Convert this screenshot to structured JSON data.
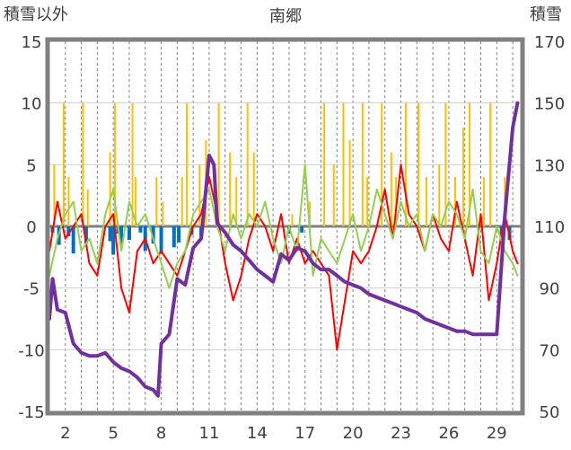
{
  "chart_data": {
    "type": "line",
    "title": "南郷",
    "y_left_label": "積雪以外",
    "y_right_label": "積雪",
    "y_left_range": [
      -15,
      15
    ],
    "y_left_ticks": [
      15,
      10,
      5,
      0,
      -5,
      -10,
      -15
    ],
    "y_right_range": [
      50,
      170
    ],
    "y_right_ticks": [
      170,
      150,
      130,
      110,
      90,
      70,
      50
    ],
    "x_range": [
      1,
      30.5
    ],
    "x_tick_labels": [
      "2",
      "5",
      "8",
      "11",
      "14",
      "17",
      "20",
      "23",
      "26",
      "29"
    ],
    "x_tick_values": [
      2,
      5,
      8,
      11,
      14,
      17,
      20,
      23,
      26,
      29
    ],
    "grid_days": [
      2,
      3,
      4,
      5,
      6,
      7,
      8,
      9,
      10,
      11,
      12,
      13,
      14,
      15,
      16,
      17,
      18,
      19,
      20,
      21,
      22,
      23,
      24,
      25,
      26,
      27,
      28,
      29,
      30
    ],
    "zero_line": 0,
    "series": [
      {
        "role": "temperature_max",
        "color": "#ff0000",
        "axis": "left",
        "x": [
          1.0,
          1.5,
          2.0,
          2.5,
          3.0,
          3.5,
          4.0,
          4.5,
          5.0,
          5.5,
          6.0,
          6.5,
          7.0,
          7.5,
          8.0,
          8.5,
          9.0,
          9.5,
          10.0,
          10.5,
          11.0,
          11.5,
          12.0,
          12.5,
          13.0,
          13.5,
          14.0,
          14.5,
          15.0,
          15.5,
          16.0,
          16.5,
          17.0,
          17.5,
          18.0,
          18.5,
          19.0,
          19.5,
          20.0,
          20.5,
          21.0,
          21.5,
          22.0,
          22.5,
          23.0,
          23.5,
          24.0,
          24.5,
          25.0,
          25.5,
          26.0,
          26.5,
          27.0,
          27.5,
          28.0,
          28.5,
          29.0,
          29.5,
          30.0,
          30.3
        ],
        "y": [
          -2,
          2,
          -1,
          0,
          1,
          -3,
          -4,
          0,
          1,
          -5,
          -7,
          -2,
          -1,
          -3,
          -2,
          -3,
          -4,
          -2,
          0,
          1,
          4,
          1,
          -3,
          -6,
          -4,
          -1,
          1,
          0,
          -2,
          1,
          -3,
          -1,
          -3,
          -2,
          -3,
          -4,
          -10,
          -6,
          -2,
          -3,
          -2,
          0,
          3,
          -1,
          5,
          1,
          0,
          -2,
          1,
          -1,
          -2,
          2,
          -1,
          -4,
          1,
          -6,
          -3,
          1,
          -2,
          -3
        ]
      },
      {
        "role": "precipitation",
        "color": "#ffc000",
        "axis": "left",
        "x": [
          1.3,
          1.9,
          2.2,
          3.1,
          3.4,
          4.8,
          5.1,
          6.2,
          6.4,
          7.7,
          8.1,
          9.3,
          9.6,
          10.4,
          10.8,
          11.6,
          12.3,
          12.7,
          13.4,
          13.8,
          16.2,
          17.3,
          18.2,
          18.8,
          19.4,
          19.8,
          20.6,
          20.9,
          21.8,
          22.4,
          22.7,
          23.3,
          24.1,
          24.6,
          25.4,
          25.8,
          26.4,
          26.9,
          27.3,
          28.2,
          28.6,
          29.5
        ],
        "y": [
          5,
          10,
          4,
          10,
          3,
          6,
          10,
          10,
          4,
          4,
          2,
          4,
          10,
          5,
          7,
          10,
          6,
          4,
          10,
          6,
          1,
          2,
          10,
          5,
          10,
          7,
          10,
          4,
          10,
          6,
          4,
          10,
          10,
          4,
          5,
          10,
          4,
          8,
          10,
          4,
          10,
          4
        ]
      },
      {
        "role": "temperature_min",
        "color": "#92d050",
        "axis": "left",
        "x": [
          1.0,
          1.5,
          2.0,
          2.5,
          3.0,
          3.5,
          4.0,
          4.5,
          5.0,
          5.5,
          6.0,
          6.5,
          7.0,
          7.5,
          8.0,
          8.5,
          9.0,
          9.5,
          10.0,
          10.5,
          11.0,
          11.5,
          12.0,
          12.5,
          13.0,
          13.5,
          14.0,
          14.5,
          15.0,
          15.5,
          16.0,
          16.5,
          17.0,
          17.5,
          18.0,
          18.5,
          19.0,
          19.5,
          20.0,
          20.5,
          21.0,
          21.5,
          22.0,
          22.5,
          23.0,
          23.5,
          24.0,
          24.5,
          25.0,
          25.5,
          26.0,
          26.5,
          27.0,
          27.5,
          28.0,
          28.5,
          29.0,
          29.5,
          30.0,
          30.3
        ],
        "y": [
          -4,
          -1,
          1,
          2,
          -2,
          -1,
          -3,
          1,
          3,
          -2,
          2,
          0,
          1,
          -1,
          -3,
          -5,
          -3,
          -2,
          1,
          2,
          3,
          0,
          -2,
          1,
          -1,
          1,
          0,
          2,
          -1,
          -3,
          0,
          -2,
          5,
          -4,
          -1,
          -2,
          -3,
          -1,
          1,
          -2,
          0,
          3,
          1,
          -1,
          2,
          0,
          1,
          -2,
          1,
          0,
          2,
          1,
          -1,
          3,
          -2,
          -3,
          0,
          -2,
          -3,
          -4
        ]
      },
      {
        "role": "sunshine",
        "color": "#0070c0",
        "axis": "left",
        "type": "bar",
        "x": [
          1.2,
          1.6,
          2.2,
          2.5,
          3.3,
          4.8,
          5.0,
          5.3,
          5.5,
          6.0,
          6.7,
          7.0,
          7.5,
          8.0,
          8.8,
          9.1,
          9.9,
          10.5,
          16.0,
          16.8,
          29.3,
          29.8
        ],
        "y": [
          -0.5,
          -1.5,
          -0.8,
          -2.2,
          -1.4,
          -1.2,
          -2.3,
          -0.6,
          -1.5,
          -1.1,
          -0.5,
          -2.0,
          -1.4,
          -2.2,
          -1.7,
          -1.3,
          -0.7,
          -0.8,
          -0.6,
          -0.5,
          -1.3,
          -1.1
        ]
      },
      {
        "role": "snow_depth",
        "color": "#7030a0",
        "axis": "right",
        "x": [
          1.0,
          1.2,
          1.5,
          2.0,
          2.5,
          3.0,
          3.5,
          4.0,
          4.5,
          5.0,
          5.5,
          6.0,
          6.5,
          7.0,
          7.5,
          7.8,
          8.0,
          8.5,
          9.0,
          9.5,
          10.0,
          10.5,
          11.0,
          11.3,
          11.5,
          12.0,
          12.5,
          13.0,
          13.5,
          14.0,
          14.5,
          15.0,
          15.5,
          16.0,
          16.5,
          17.0,
          17.5,
          18.0,
          18.5,
          19.0,
          19.5,
          20.0,
          20.5,
          21.0,
          21.5,
          22.0,
          22.5,
          23.0,
          23.5,
          24.0,
          24.5,
          25.0,
          25.5,
          26.0,
          26.5,
          27.0,
          27.5,
          28.0,
          28.5,
          29.0,
          29.5,
          30.0,
          30.3
        ],
        "y": [
          80,
          93,
          83,
          82,
          72,
          69,
          68,
          68,
          69,
          66,
          64,
          63,
          61,
          58,
          57,
          55,
          72,
          75,
          93,
          91,
          103,
          106,
          133,
          130,
          111,
          108,
          104,
          102,
          99,
          96,
          94,
          92,
          101,
          99,
          103,
          102,
          98,
          96,
          96,
          94,
          92,
          91,
          90,
          88,
          87,
          86,
          85,
          84,
          83,
          82,
          80,
          79,
          78,
          77,
          76,
          76,
          75,
          75,
          75,
          75,
          113,
          142,
          150
        ]
      }
    ]
  }
}
